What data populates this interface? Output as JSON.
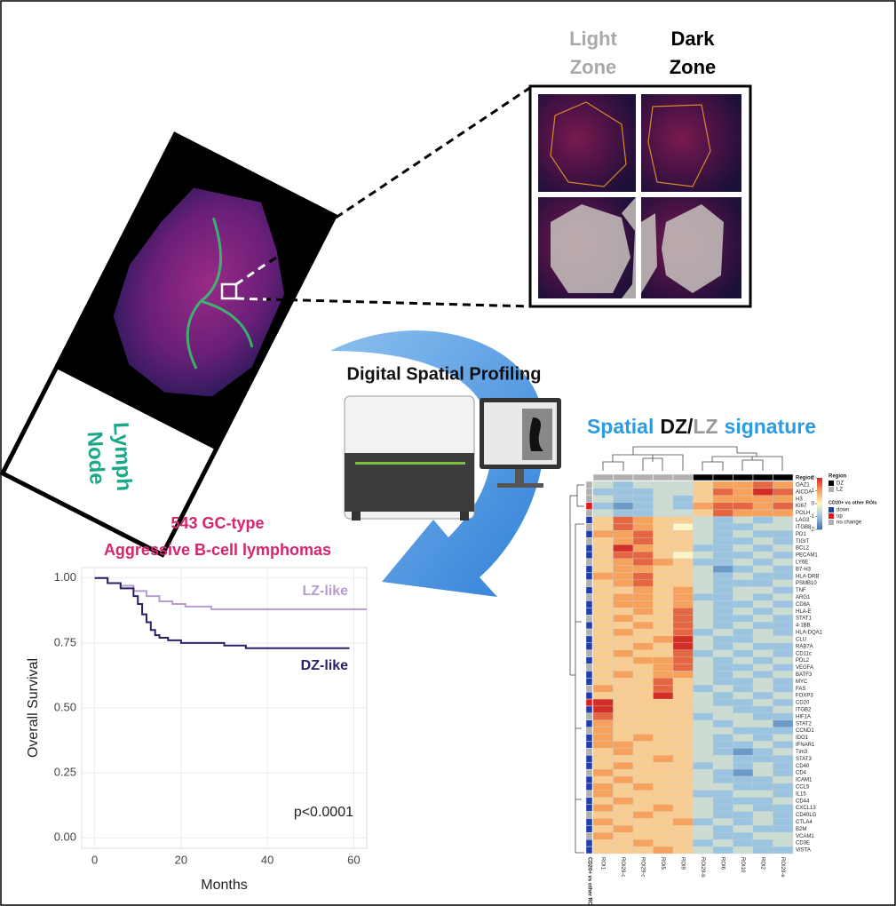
{
  "panel": {
    "light_zone": [
      "Light",
      "Zone"
    ],
    "dark_zone": [
      "Dark",
      "Zone"
    ]
  },
  "slide_label": [
    "Lymph",
    "Node"
  ],
  "method": "Digital Spatial Profiling",
  "chart_data": [
    {
      "type": "line",
      "step": true,
      "title": [
        "543 GC-type",
        "Aggressive B-cell lymphomas"
      ],
      "x_label": "Months",
      "y_label": "Overall Survival",
      "xlim": [
        -3,
        63
      ],
      "ylim": [
        -0.04,
        1.04
      ],
      "xticks": [
        0,
        20,
        40,
        60
      ],
      "yticks": [
        {
          "value": 0,
          "label": "0.00"
        },
        {
          "value": 0.25,
          "label": "0.25"
        },
        {
          "value": 0.5,
          "label": "0.50"
        },
        {
          "value": 0.75,
          "label": "0.75"
        },
        {
          "value": 1,
          "label": "1.00"
        }
      ],
      "grid": true,
      "series": [
        {
          "name": "LZ-like",
          "color": "#b89ccf",
          "x": [
            0,
            3,
            6,
            9,
            12,
            15,
            18,
            21,
            24,
            27,
            30,
            35,
            40,
            45,
            50,
            55,
            63
          ],
          "values": [
            1,
            0.98,
            0.97,
            0.95,
            0.93,
            0.91,
            0.9,
            0.89,
            0.89,
            0.88,
            0.88,
            0.88,
            0.88,
            0.88,
            0.88,
            0.88,
            0.88
          ]
        },
        {
          "name": "DZ-like",
          "color": "#2b2166",
          "x": [
            0,
            3,
            6,
            9,
            10,
            11,
            12,
            13,
            14,
            15,
            17,
            20,
            25,
            30,
            35,
            40,
            50,
            59
          ],
          "values": [
            1,
            0.98,
            0.96,
            0.93,
            0.9,
            0.86,
            0.83,
            0.8,
            0.78,
            0.77,
            0.76,
            0.75,
            0.75,
            0.74,
            0.73,
            0.73,
            0.73,
            0.73
          ]
        }
      ],
      "annotation": "p<0.0001"
    },
    {
      "type": "heatmap",
      "title_parts": [
        "Spatial",
        "DZ",
        "/",
        "LZ",
        "signature"
      ],
      "columns": [
        "ROI1",
        "ROI29-c",
        "ROI29-c",
        "ROI5",
        "ROI9",
        "ROI29-b",
        "ROI6",
        "ROI10",
        "ROI2",
        "ROI29-e"
      ],
      "rows": [
        "OAZ1",
        "AICDA",
        "H3",
        "KI67",
        "POLH",
        "LAG3",
        "ITGB8",
        "PD1",
        "TIGIT",
        "BCL2",
        "PECAM1",
        "LY6E",
        "B7-H3",
        "HLA-DRB",
        "PSMB10",
        "TNF",
        "ARG1",
        "CD8A",
        "HLA-E",
        "STAT1",
        "4-1BB",
        "HLA-DQA1",
        "CLU",
        "RAB7A",
        "CD11c",
        "PDL2",
        "VEGFA",
        "BATF3",
        "MYC",
        "FAS",
        "FOXP3",
        "CD20",
        "ITGB2",
        "HIF1A",
        "STAT2",
        "CCND1",
        "IDO1",
        "IFNAR1",
        "Tim3",
        "STAT3",
        "CD40",
        "CD4",
        "ICAM1",
        "CCL5",
        "IL15",
        "CD44",
        "CXCL13",
        "CD40LG",
        "CTLA4",
        "B2M",
        "VCAM1",
        "CD3E",
        "VISTA"
      ],
      "values": [
        [
          -0.5,
          -1,
          -0.5,
          -0.5,
          -0.5,
          0.5,
          1,
          1,
          1.5,
          1
        ],
        [
          -1,
          -1,
          -1,
          -0.5,
          -0.5,
          0.5,
          1.5,
          1,
          2,
          1.5
        ],
        [
          -0.5,
          -1,
          -1,
          -0.5,
          -1,
          0.5,
          1,
          1,
          1,
          1
        ],
        [
          -1,
          -1.5,
          -1,
          -0.5,
          -1,
          1,
          1.5,
          1.5,
          1,
          1.5
        ],
        [
          -0.5,
          -1,
          -1,
          -0.5,
          -0.5,
          0.5,
          1.5,
          1,
          1,
          1
        ],
        [
          0.5,
          1.5,
          1,
          0.5,
          0.5,
          -0.5,
          -1,
          -0.5,
          -1,
          -0.5
        ],
        [
          0.5,
          1.5,
          1,
          0.5,
          0,
          -0.5,
          -1,
          -1,
          -0.5,
          -0.5
        ],
        [
          1,
          1,
          1.5,
          0.5,
          0.5,
          -0.5,
          -1,
          -0.5,
          -1,
          -1
        ],
        [
          0.5,
          1,
          1.5,
          0.5,
          0.5,
          -0.5,
          -1,
          -1,
          -0.5,
          -1
        ],
        [
          0.5,
          2,
          1,
          0.5,
          0.5,
          -1,
          -1,
          -0.5,
          -1,
          -0.5
        ],
        [
          0.5,
          1.5,
          1.5,
          0.5,
          0,
          -0.5,
          -1,
          -1,
          -0.5,
          -1
        ],
        [
          0.5,
          1,
          1.5,
          1,
          0.5,
          -1,
          -1,
          -0.5,
          -1,
          -0.5
        ],
        [
          0.5,
          1,
          1,
          0.5,
          0.5,
          -0.5,
          -1.5,
          -1,
          -0.5,
          -1
        ],
        [
          1,
          1,
          1.5,
          0.5,
          0.5,
          -0.5,
          -1,
          -0.5,
          -1,
          -1
        ],
        [
          0.5,
          1,
          1.5,
          0.5,
          0.5,
          -0.5,
          -1,
          -1,
          -1,
          -0.5
        ],
        [
          0.5,
          0.5,
          1,
          0.5,
          1,
          -0.5,
          -1,
          -0.5,
          -0.5,
          -1
        ],
        [
          0.5,
          1,
          1,
          0.5,
          1,
          -1,
          -1,
          -0.5,
          -1,
          -0.5
        ],
        [
          0.5,
          1,
          1,
          0.5,
          1,
          -0.5,
          -1,
          -1,
          -0.5,
          -1
        ],
        [
          0.5,
          0.5,
          1,
          0.5,
          1.5,
          -0.5,
          -1,
          -0.5,
          -1,
          -0.5
        ],
        [
          0.5,
          1,
          0.5,
          0.5,
          1.5,
          -0.5,
          -1,
          -1,
          -0.5,
          -1
        ],
        [
          0.5,
          0.5,
          1,
          0.5,
          1.5,
          -0.5,
          -1,
          -0.5,
          -1,
          -1
        ],
        [
          0.5,
          1,
          0.5,
          0.5,
          1.5,
          -1,
          -0.5,
          -1,
          -0.5,
          -1
        ],
        [
          0.5,
          0.5,
          0.5,
          1,
          2,
          -0.5,
          -1,
          -1,
          -0.5,
          -0.5
        ],
        [
          0.5,
          0.5,
          1,
          0.5,
          2,
          -0.5,
          -1,
          -0.5,
          -1,
          -1
        ],
        [
          0.5,
          1,
          0.5,
          0.5,
          1.5,
          -1,
          -0.5,
          -1,
          -0.5,
          -1
        ],
        [
          0.5,
          0.5,
          1,
          1,
          1.5,
          -0.5,
          -1,
          -0.5,
          -1,
          -0.5
        ],
        [
          0.5,
          0.5,
          0.5,
          1,
          1.5,
          -0.5,
          -1,
          -1,
          -0.5,
          -1
        ],
        [
          0.5,
          1,
          0.5,
          1,
          1,
          -0.5,
          -1,
          -0.5,
          -1,
          -0.5
        ],
        [
          0.5,
          0.5,
          0.5,
          1.5,
          0.5,
          -0.5,
          -1,
          -1,
          -0.5,
          -1
        ],
        [
          1,
          0.5,
          0.5,
          1.5,
          0.5,
          -1,
          -0.5,
          -1,
          -0.5,
          -1
        ],
        [
          0.5,
          0.5,
          0.5,
          2,
          0.5,
          -0.5,
          -1,
          -0.5,
          -1,
          -0.5
        ],
        [
          2,
          0.5,
          0.5,
          0.5,
          0.5,
          -0.5,
          -1,
          -1,
          -0.5,
          -1
        ],
        [
          2,
          0.5,
          0.5,
          0.5,
          0.5,
          -0.5,
          -0.5,
          -1,
          -1,
          -0.5
        ],
        [
          1.5,
          0.5,
          0.5,
          0.5,
          0.5,
          -1,
          -0.5,
          -0.5,
          -1,
          -1
        ],
        [
          1,
          0.5,
          0.5,
          0.5,
          0.5,
          -0.5,
          -1,
          -0.5,
          -0.5,
          -1.5
        ],
        [
          1,
          0.5,
          0.5,
          0.5,
          0.5,
          -0.5,
          -0.5,
          -1,
          -1,
          -1
        ],
        [
          1,
          0.5,
          1,
          0.5,
          0.5,
          -0.5,
          -1,
          -0.5,
          -1,
          -0.5
        ],
        [
          1,
          1,
          0.5,
          0.5,
          0.5,
          -0.5,
          -1,
          -1,
          -0.5,
          -1
        ],
        [
          0.5,
          1,
          0.5,
          0.5,
          0.5,
          -0.5,
          -1,
          -1.5,
          -1,
          -0.5
        ],
        [
          0.5,
          0.5,
          0.5,
          1,
          0.5,
          -0.5,
          -0.5,
          -1,
          -1,
          -1
        ],
        [
          0.5,
          1,
          0.5,
          0.5,
          0.5,
          -1,
          -0.5,
          -1,
          -0.5,
          -1
        ],
        [
          1,
          0.5,
          0.5,
          0.5,
          0.5,
          -0.5,
          -1,
          -1.5,
          -0.5,
          -1
        ],
        [
          0.5,
          1,
          0.5,
          0.5,
          0.5,
          -0.5,
          -1,
          -1,
          -1,
          -0.5
        ],
        [
          1,
          0.5,
          1,
          0.5,
          0.5,
          -0.5,
          -0.5,
          -1,
          -1,
          -1
        ],
        [
          1,
          0.5,
          0.5,
          0.5,
          0.5,
          -1,
          -1,
          -0.5,
          -0.5,
          -1
        ],
        [
          0.5,
          1,
          0.5,
          0.5,
          0.5,
          -0.5,
          -1,
          -1,
          -1,
          -0.5
        ],
        [
          1,
          0.5,
          0.5,
          1,
          0.5,
          -0.5,
          -1,
          -0.5,
          -1,
          -1
        ],
        [
          0.5,
          0.5,
          1,
          0.5,
          0.5,
          -0.5,
          -1,
          -1,
          -0.5,
          -1
        ],
        [
          1,
          0.5,
          0.5,
          0.5,
          1,
          -1,
          -0.5,
          -1,
          -0.5,
          -1
        ],
        [
          0.5,
          1,
          0.5,
          0.5,
          0.5,
          -0.5,
          -1,
          -0.5,
          -1,
          -1
        ],
        [
          1,
          0.5,
          0.5,
          0.5,
          0.5,
          -0.5,
          -1,
          -1,
          -0.5,
          -0.5
        ],
        [
          0.5,
          0.5,
          1,
          0.5,
          0.5,
          -1,
          -0.5,
          -1,
          -1,
          -0.5
        ],
        [
          0.5,
          0.5,
          0.5,
          1,
          0.5,
          -0.5,
          -1,
          -0.5,
          -1,
          -1
        ]
      ],
      "column_annotation": {
        "name": "Region",
        "values": [
          "LZ",
          "LZ",
          "LZ",
          "LZ",
          "LZ",
          "DZ",
          "DZ",
          "DZ",
          "DZ",
          "DZ"
        ],
        "legend": [
          {
            "name": "DZ",
            "color": "#000000"
          },
          {
            "name": "LZ",
            "color": "#b0b0b0"
          }
        ]
      },
      "row_annotation": {
        "name": "CD20+ vs other ROIs",
        "values": [
          "no change",
          "no change",
          "no change",
          "up",
          "no change",
          "down",
          "no change",
          "down",
          "no change",
          "down",
          "down",
          "no change",
          "down",
          "down",
          "no change",
          "down",
          "no change",
          "down",
          "down",
          "no change",
          "down",
          "no change",
          "down",
          "down",
          "no change",
          "down",
          "no change",
          "down",
          "down",
          "no change",
          "down",
          "up",
          "down",
          "no change",
          "down",
          "no change",
          "down",
          "down",
          "no change",
          "down",
          "down",
          "no change",
          "down",
          "down",
          "no change",
          "down",
          "down",
          "no change",
          "down",
          "down",
          "no change",
          "down",
          "down"
        ],
        "legend": [
          {
            "name": "down",
            "color": "#1f3fae"
          },
          {
            "name": "up",
            "color": "#e41a1c"
          },
          {
            "name": "no change",
            "color": "#b0b0b0"
          }
        ]
      },
      "color_scale": {
        "lim": [
          -2,
          2
        ],
        "ticks": [
          2,
          1,
          0,
          -1,
          -2
        ],
        "colors": [
          "#3a6fb0",
          "#9ac4df",
          "#fbf6c6",
          "#f6a15c",
          "#d42d26"
        ]
      }
    }
  ]
}
